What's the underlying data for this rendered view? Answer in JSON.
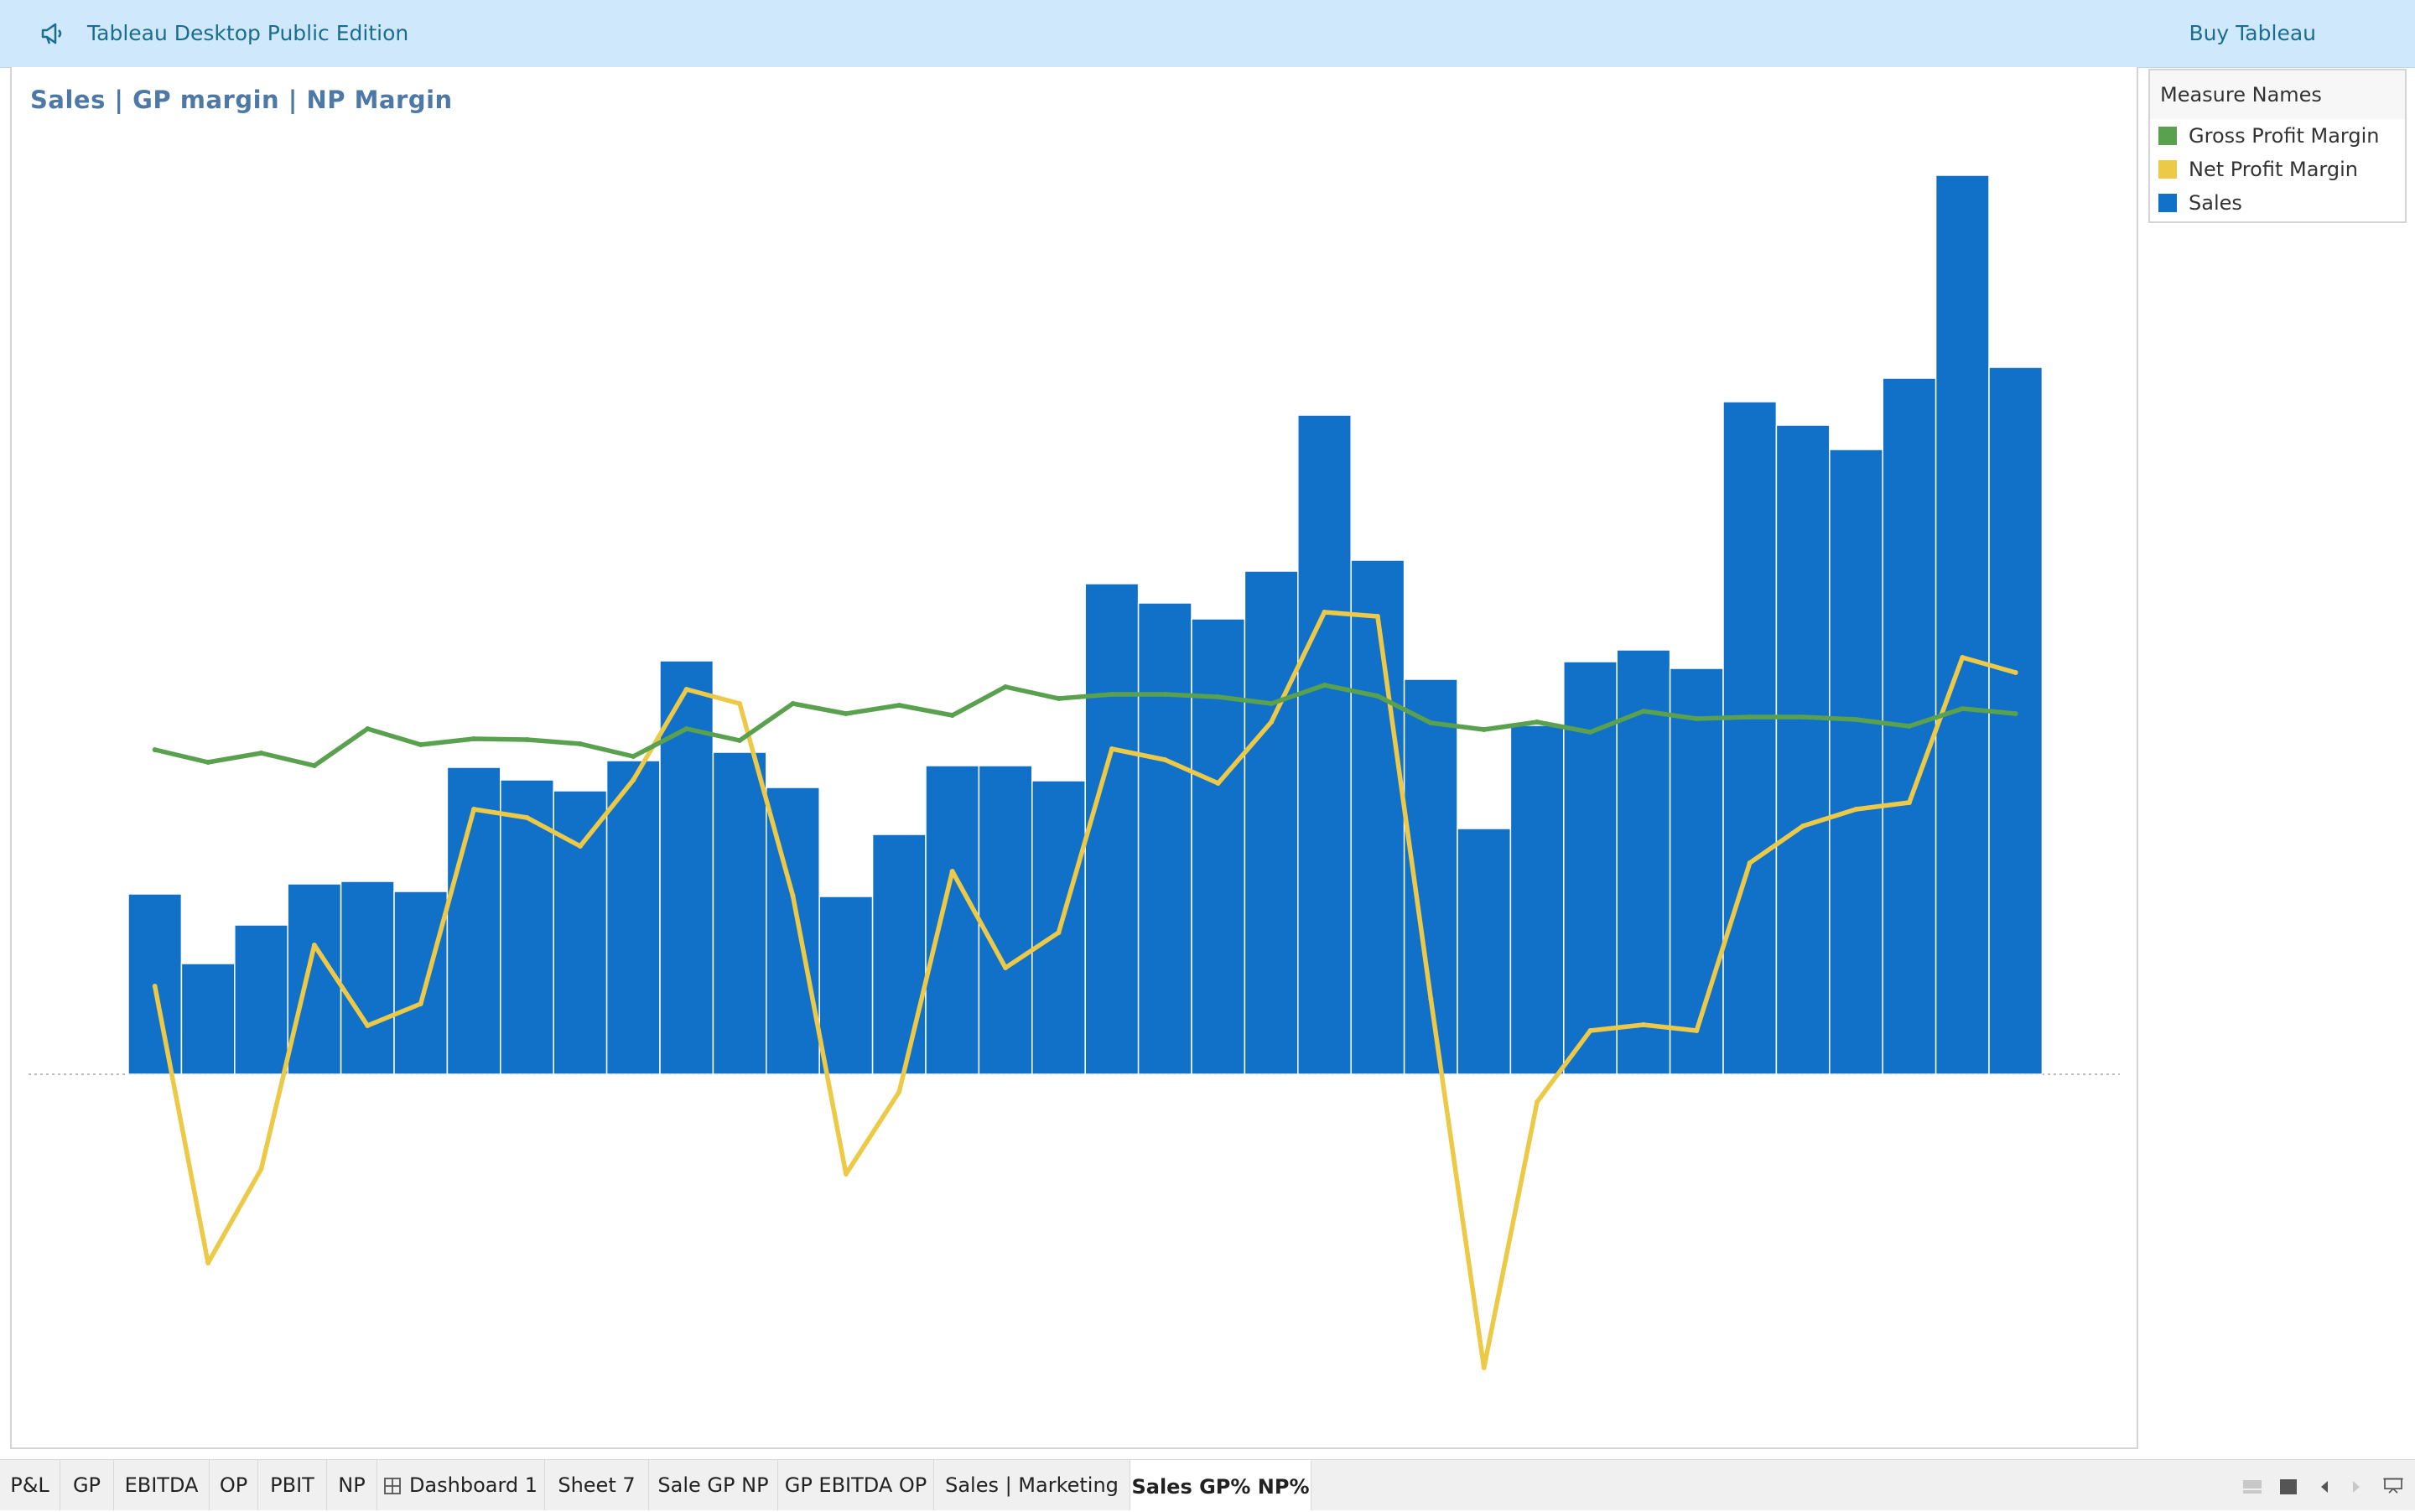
{
  "header": {
    "app_title": "Tableau Desktop Public Edition",
    "buy_label": "Buy Tableau",
    "icon": "megaphone-icon"
  },
  "worksheet": {
    "title": "Sales | GP margin | NP Margin"
  },
  "legend": {
    "title": "Measure Names",
    "items": [
      {
        "label": "Gross Profit Margin",
        "color": "#59a14f"
      },
      {
        "label": "Net Profit Margin",
        "color": "#edc948"
      },
      {
        "label": "Sales",
        "color": "#1170c8"
      }
    ]
  },
  "chart_data": {
    "type": "bar",
    "title": "Sales | GP margin | NP Margin",
    "axes_visible": false,
    "grid": false,
    "zero_line": true,
    "legend_position": "right",
    "notes": "Values are relative (axes hidden); sales baseline = 0, margins on own scales",
    "sales": {
      "name": "Sales",
      "color": "#1170c8",
      "values": [
        21.5,
        13.2,
        17.8,
        22.7,
        23.0,
        21.8,
        36.6,
        35.1,
        33.8,
        37.4,
        49.3,
        38.4,
        34.2,
        21.2,
        28.6,
        36.8,
        36.8,
        35.0,
        58.5,
        56.2,
        54.3,
        60.0,
        78.6,
        61.3,
        47.1,
        29.3,
        41.6,
        49.2,
        50.6,
        48.4,
        80.2,
        77.4,
        74.5,
        83.0,
        107.2,
        84.3
      ]
    },
    "gross_profit_margin": {
      "name": "Gross Profit Margin",
      "color": "#59a14f",
      "values": [
        38.7,
        37.2,
        38.3,
        36.8,
        41.2,
        39.3,
        40.0,
        39.9,
        39.4,
        37.9,
        41.2,
        39.8,
        44.2,
        43.0,
        44.0,
        42.8,
        46.2,
        44.8,
        45.3,
        45.3,
        45.0,
        44.2,
        46.4,
        45.1,
        41.9,
        41.1,
        42.0,
        40.8,
        43.3,
        42.4,
        42.6,
        42.6,
        42.3,
        41.5,
        43.6,
        43.0
      ]
    },
    "net_profit_margin": {
      "name": "Net Profit Margin",
      "color": "#edc948",
      "values": [
        10.5,
        -22.5,
        -11.3,
        15.4,
        5.8,
        8.4,
        31.6,
        30.6,
        27.2,
        35.1,
        45.9,
        44.2,
        21.3,
        -11.9,
        -2.1,
        24.2,
        12.7,
        16.9,
        38.8,
        37.5,
        34.7,
        42.0,
        55.1,
        54.6,
        9.0,
        -35.0,
        -3.3,
        5.2,
        5.9,
        5.2,
        25.2,
        29.6,
        31.6,
        32.4,
        49.7,
        47.9
      ]
    }
  },
  "tabs": [
    {
      "label": "P&L"
    },
    {
      "label": "GP"
    },
    {
      "label": "EBITDA"
    },
    {
      "label": "OP"
    },
    {
      "label": "PBIT"
    },
    {
      "label": "NP"
    },
    {
      "label": "Dashboard 1"
    },
    {
      "label": "Sheet 7"
    },
    {
      "label": "Sale GP NP"
    },
    {
      "label": "GP EBITDA OP"
    },
    {
      "label": "Sales | Marketing"
    },
    {
      "label": "Sales GP% NP%"
    }
  ],
  "active_tab": "Sales GP% NP%"
}
